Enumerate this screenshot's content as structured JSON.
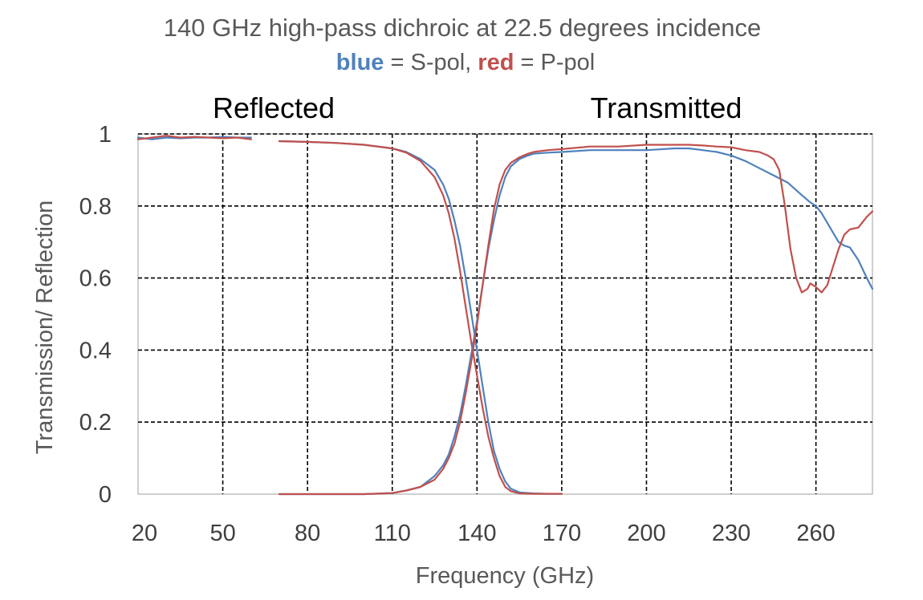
{
  "chart_data": {
    "type": "line",
    "title": "140 GHz high-pass dichroic at 22.5 degrees incidence",
    "legend": {
      "blue_word": "blue",
      "blue_desc": " = S-pol, ",
      "red_word": "red",
      "red_desc": " = P-pol"
    },
    "region_labels": {
      "left": "Reflected",
      "right": "Transmitted"
    },
    "xlabel": "Frequency (GHz)",
    "ylabel": "Transmission/ Reflection",
    "xlim": [
      20,
      280
    ],
    "ylim": [
      0,
      1
    ],
    "xticks": [
      20,
      50,
      80,
      110,
      140,
      170,
      200,
      230,
      260
    ],
    "xtick_labels": [
      "20",
      "50",
      "80",
      "110",
      "140",
      "170",
      "200",
      "230",
      "260"
    ],
    "yticks": [
      0,
      0.2,
      0.4,
      0.6,
      0.8,
      1
    ],
    "ytick_labels": [
      "0",
      "0.2",
      "0.4",
      "0.6",
      "0.8",
      "1"
    ],
    "x_grid_lines": [
      50,
      80,
      110,
      140,
      170,
      200,
      230,
      260
    ],
    "grid": true,
    "colors": {
      "s_pol": "#4f81bd",
      "p_pol": "#c0504d",
      "grid": "#000000"
    },
    "series": [
      {
        "name": "S-pol reflected (low band)",
        "color": "#4f81bd",
        "x": [
          20,
          25,
          30,
          35,
          40,
          45,
          50,
          55,
          60
        ],
        "y": [
          0.99,
          0.985,
          0.99,
          0.988,
          0.99,
          0.99,
          0.992,
          0.99,
          0.99
        ]
      },
      {
        "name": "P-pol reflected (low band)",
        "color": "#c0504d",
        "x": [
          20,
          25,
          30,
          35,
          40,
          45,
          50,
          55,
          60
        ],
        "y": [
          0.985,
          0.99,
          0.995,
          0.99,
          0.992,
          0.99,
          0.988,
          0.99,
          0.985
        ]
      },
      {
        "name": "S-pol reflected",
        "color": "#4f81bd",
        "x": [
          70,
          80,
          90,
          100,
          110,
          115,
          120,
          125,
          128,
          130,
          132,
          134,
          136,
          138,
          140,
          142,
          144,
          146,
          148,
          150,
          152,
          155,
          160,
          165,
          170
        ],
        "y": [
          0.98,
          0.978,
          0.975,
          0.97,
          0.96,
          0.95,
          0.93,
          0.9,
          0.86,
          0.82,
          0.76,
          0.69,
          0.6,
          0.5,
          0.4,
          0.3,
          0.2,
          0.12,
          0.07,
          0.035,
          0.015,
          0.005,
          0.002,
          0.001,
          0.001
        ]
      },
      {
        "name": "P-pol reflected",
        "color": "#c0504d",
        "x": [
          70,
          80,
          90,
          100,
          110,
          115,
          120,
          125,
          128,
          130,
          132,
          134,
          136,
          138,
          140,
          142,
          144,
          146,
          148,
          150,
          152,
          155,
          160,
          165,
          170
        ],
        "y": [
          0.98,
          0.978,
          0.975,
          0.97,
          0.96,
          0.948,
          0.925,
          0.88,
          0.83,
          0.78,
          0.71,
          0.62,
          0.52,
          0.42,
          0.33,
          0.24,
          0.16,
          0.1,
          0.05,
          0.02,
          0.008,
          0.002,
          0.001,
          0.001,
          0.001
        ]
      },
      {
        "name": "S-pol transmitted",
        "color": "#4f81bd",
        "x": [
          70,
          100,
          110,
          115,
          120,
          125,
          128,
          130,
          132,
          134,
          136,
          138,
          140,
          142,
          144,
          146,
          148,
          150,
          152,
          155,
          158,
          160,
          165,
          170,
          180,
          190,
          200,
          210,
          215,
          220,
          225,
          230,
          235,
          240,
          245,
          250,
          255,
          258,
          260,
          262,
          265,
          268,
          270,
          272,
          275,
          278,
          280
        ],
        "y": [
          0.0,
          0.0,
          0.003,
          0.01,
          0.02,
          0.05,
          0.08,
          0.11,
          0.16,
          0.22,
          0.3,
          0.39,
          0.48,
          0.58,
          0.68,
          0.76,
          0.83,
          0.88,
          0.91,
          0.93,
          0.94,
          0.945,
          0.948,
          0.95,
          0.955,
          0.955,
          0.955,
          0.96,
          0.96,
          0.955,
          0.95,
          0.94,
          0.925,
          0.905,
          0.885,
          0.865,
          0.83,
          0.81,
          0.8,
          0.78,
          0.74,
          0.7,
          0.69,
          0.685,
          0.65,
          0.6,
          0.57
        ]
      },
      {
        "name": "P-pol transmitted",
        "color": "#c0504d",
        "x": [
          70,
          100,
          110,
          115,
          120,
          125,
          128,
          130,
          132,
          134,
          136,
          138,
          140,
          142,
          144,
          146,
          148,
          150,
          152,
          155,
          158,
          160,
          165,
          170,
          180,
          190,
          200,
          210,
          215,
          220,
          225,
          230,
          235,
          240,
          243,
          245,
          247,
          249,
          251,
          253,
          255,
          257,
          258,
          260,
          262,
          264,
          266,
          268,
          270,
          272,
          275,
          278,
          280
        ],
        "y": [
          0.0,
          0.0,
          0.003,
          0.01,
          0.02,
          0.04,
          0.07,
          0.1,
          0.14,
          0.2,
          0.28,
          0.37,
          0.47,
          0.58,
          0.69,
          0.79,
          0.86,
          0.9,
          0.92,
          0.935,
          0.945,
          0.95,
          0.955,
          0.958,
          0.965,
          0.965,
          0.97,
          0.97,
          0.97,
          0.968,
          0.965,
          0.963,
          0.955,
          0.95,
          0.94,
          0.93,
          0.9,
          0.8,
          0.68,
          0.6,
          0.56,
          0.57,
          0.585,
          0.575,
          0.56,
          0.58,
          0.63,
          0.68,
          0.72,
          0.735,
          0.74,
          0.77,
          0.785
        ]
      }
    ]
  }
}
